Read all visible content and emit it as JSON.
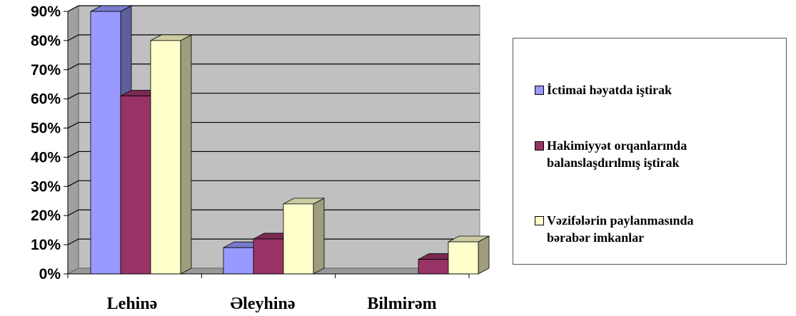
{
  "chart_data": {
    "type": "bar",
    "categories": [
      "Lehinə",
      "Əleyhinə",
      "Bilmirəm"
    ],
    "series": [
      {
        "name": "İctimai həyatda iştirak",
        "values": [
          90,
          9,
          0
        ],
        "color": "#9999ff"
      },
      {
        "name": "Hakimiyyət orqanlarında balanslaşdırılmış iştirak",
        "values": [
          61,
          12,
          5
        ],
        "color": "#993366"
      },
      {
        "name": "Vəzifələrin paylanmasında bərabər imkanlar",
        "values": [
          80,
          24,
          11
        ],
        "color": "#ffffcc"
      }
    ],
    "yticks": [
      "0%",
      "10%",
      "20%",
      "30%",
      "40%",
      "50%",
      "60%",
      "70%",
      "80%",
      "90%"
    ],
    "ylim": [
      0,
      90
    ],
    "grid": true,
    "legend_position": "right",
    "title": "",
    "xlabel": "",
    "ylabel": ""
  },
  "legend": {
    "items": [
      {
        "line1": "İctimai həyatda iştirak",
        "line2": ""
      },
      {
        "line1": "Hakimiyyət orqanlarında",
        "line2": "balanslaşdırılmış iştirak"
      },
      {
        "line1": "Vəzifələrin paylanmasında",
        "line2": "bərabər imkanlar"
      }
    ]
  }
}
